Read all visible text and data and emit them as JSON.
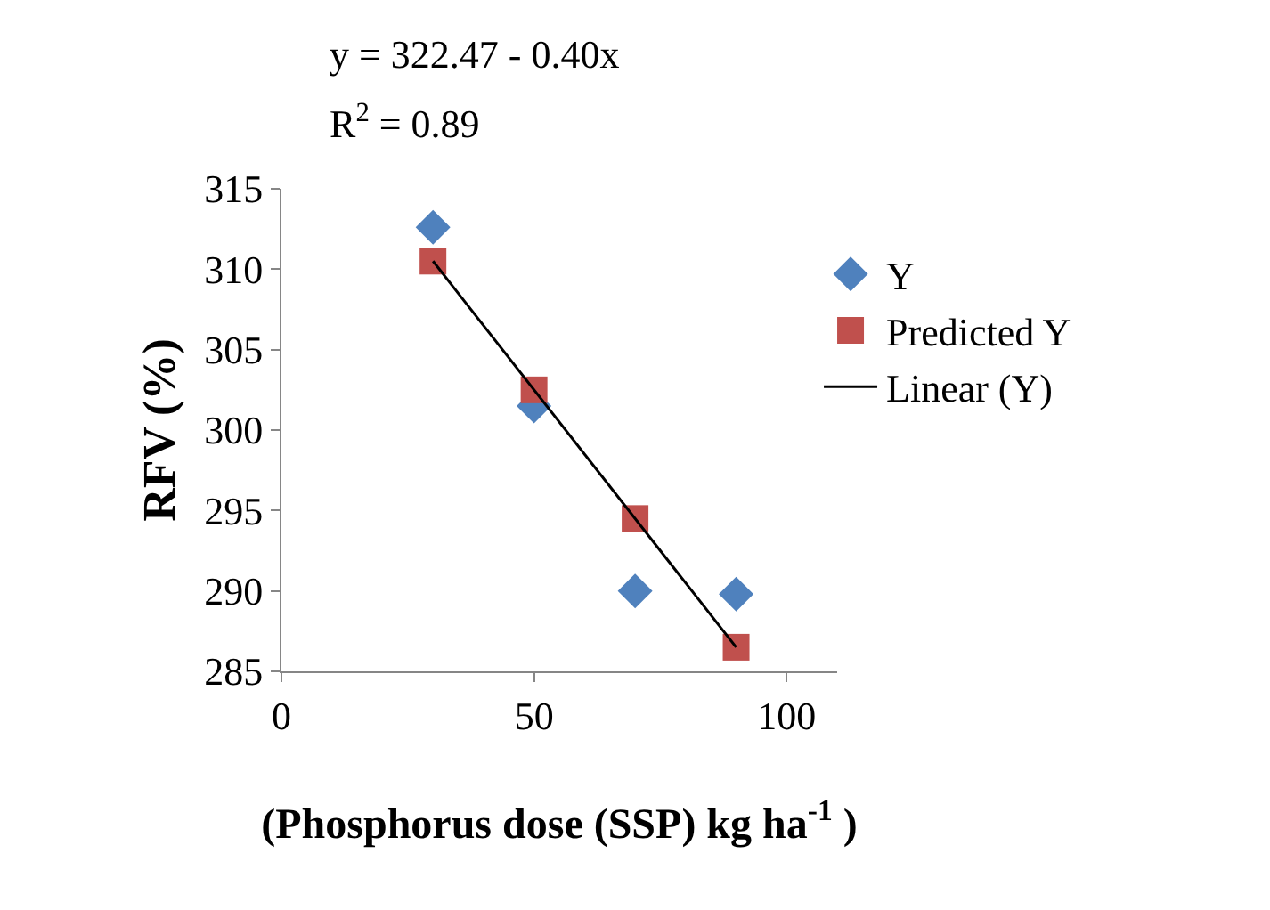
{
  "chart_data": {
    "type": "scatter",
    "xlabel": "(Phosphorus dose (SSP) kg ha$^{-1}$ )",
    "ylabel": "RFV (%)",
    "annotations": [
      "y = 322.47 - 0.40x",
      "R$^{2}$ = 0.89"
    ],
    "x": [
      30,
      50,
      70,
      90
    ],
    "series": [
      {
        "name": "Y",
        "color": "#4f81bd",
        "marker": "diamond",
        "values": [
          312.6,
          301.5,
          290.0,
          289.8
        ]
      },
      {
        "name": "Predicted Y",
        "color": "#c0504d",
        "marker": "square",
        "values": [
          310.5,
          302.5,
          294.5,
          286.5
        ]
      },
      {
        "name": "Linear (Y)",
        "type": "line",
        "color": "#000000",
        "marker": "none",
        "x": [
          30,
          90
        ],
        "values": [
          310.5,
          286.5
        ]
      }
    ],
    "xlim": [
      0,
      110
    ],
    "xticks": [
      0,
      50,
      100
    ],
    "ylim": [
      285,
      315
    ],
    "yticks": [
      285,
      290,
      295,
      300,
      305,
      310,
      315
    ],
    "legend": "right"
  }
}
